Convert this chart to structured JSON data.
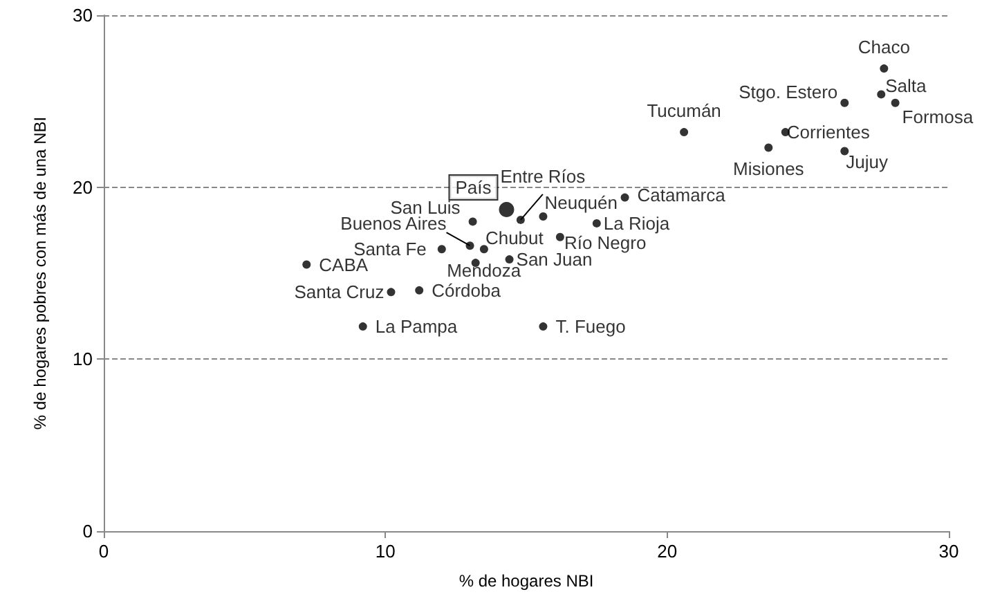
{
  "chart_data": {
    "type": "scatter",
    "xlabel": "% de hogares NBI",
    "ylabel": "% de hogares pobres con más de una NBI",
    "xlim": [
      0,
      30
    ],
    "xticks": [
      0,
      10,
      20,
      30
    ],
    "ylim": [
      0,
      30
    ],
    "yticks": [
      0,
      10,
      20,
      30
    ],
    "grid": "y",
    "marker": "circle",
    "series": [
      {
        "color": "#000000",
        "x": [
          27.7,
          27.6,
          28.1,
          26.3,
          20.6,
          24.2,
          23.6,
          26.3,
          18.5,
          15.6,
          17.5,
          16.2,
          14.8,
          13.1,
          13.0,
          13.5,
          12.0,
          13.2,
          14.4,
          7.2,
          10.2,
          11.2,
          9.2,
          15.6
        ],
        "values": [
          26.9,
          25.4,
          24.9,
          24.9,
          23.2,
          23.2,
          22.3,
          22.1,
          19.4,
          18.3,
          17.9,
          17.1,
          18.1,
          18.0,
          16.6,
          16.4,
          16.4,
          15.6,
          15.8,
          15.5,
          13.9,
          14.0,
          11.9,
          11.9
        ]
      },
      {
        "color": "#000000",
        "x": [
          14.3
        ],
        "values": [
          18.7
        ]
      }
    ],
    "annotations": [
      {
        "text": "Chaco",
        "x": 27.7,
        "y": 26.9
      },
      {
        "text": "Salta",
        "x": 27.6,
        "y": 25.4
      },
      {
        "text": "Formosa",
        "x": 28.1,
        "y": 24.9
      },
      {
        "text": "Stgo. Estero",
        "x": 26.3,
        "y": 24.9
      },
      {
        "text": "Tucumán",
        "x": 20.6,
        "y": 23.2
      },
      {
        "text": "Corrientes",
        "x": 24.2,
        "y": 23.2
      },
      {
        "text": "Misiones",
        "x": 23.6,
        "y": 22.3
      },
      {
        "text": "Jujuy",
        "x": 26.3,
        "y": 22.1
      },
      {
        "text": "Catamarca",
        "x": 18.5,
        "y": 19.4
      },
      {
        "text": "Neuquén",
        "x": 15.6,
        "y": 18.3
      },
      {
        "text": "La Rioja",
        "x": 17.5,
        "y": 17.9
      },
      {
        "text": "Río Negro",
        "x": 16.2,
        "y": 17.1
      },
      {
        "text": "País",
        "x": 14.3,
        "y": 18.7
      },
      {
        "text": "Entre Ríos",
        "x": 14.8,
        "y": 18.1
      },
      {
        "text": "San Luis",
        "x": 13.1,
        "y": 18.0
      },
      {
        "text": "Buenos Aires",
        "x": 13.0,
        "y": 16.6
      },
      {
        "text": "Chubut",
        "x": 13.5,
        "y": 16.4
      },
      {
        "text": "Santa Fe",
        "x": 12.0,
        "y": 16.4
      },
      {
        "text": "Mendoza",
        "x": 13.2,
        "y": 15.6
      },
      {
        "text": "San Juan",
        "x": 14.4,
        "y": 15.8
      },
      {
        "text": "CABA",
        "x": 7.2,
        "y": 15.5
      },
      {
        "text": "Santa Cruz",
        "x": 10.2,
        "y": 13.9
      },
      {
        "text": "Córdoba",
        "x": 11.2,
        "y": 14.0
      },
      {
        "text": "La Pampa",
        "x": 9.2,
        "y": 11.9
      },
      {
        "text": "T. Fuego",
        "x": 15.6,
        "y": 11.9
      }
    ]
  }
}
